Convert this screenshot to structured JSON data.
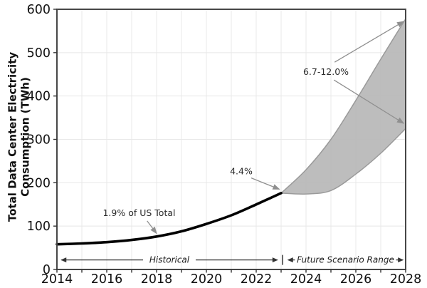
{
  "chart_data": {
    "type": "area",
    "title": "",
    "xlabel": "",
    "ylabel": "Total Data Center Electricity\nConsumption (TWh)",
    "xlim": [
      2014,
      2028
    ],
    "ylim": [
      0,
      600
    ],
    "x_tick_labels": [
      2014,
      2016,
      2018,
      2020,
      2022,
      2024,
      2026,
      2028
    ],
    "x_minor_ticks": [
      2014,
      2015,
      2016,
      2017,
      2018,
      2019,
      2020,
      2021,
      2022,
      2023,
      2024,
      2025,
      2026,
      2027,
      2028
    ],
    "y_ticks": [
      0,
      100,
      200,
      300,
      400,
      500,
      600
    ],
    "grid": true,
    "legend": "none",
    "series": [
      {
        "name": "Historical",
        "type": "line",
        "x": [
          2014,
          2015,
          2016,
          2017,
          2018,
          2019,
          2020,
          2021,
          2022,
          2023
        ],
        "values": [
          58,
          60,
          63,
          68,
          76,
          88,
          105,
          125,
          150,
          176
        ]
      },
      {
        "name": "Future Scenario Range (low)",
        "type": "band-lower-edge",
        "x": [
          2023,
          2024,
          2025,
          2026,
          2027,
          2028
        ],
        "values": [
          176,
          174,
          182,
          220,
          268,
          325
        ]
      },
      {
        "name": "Future Scenario Range (high)",
        "type": "band-upper-edge",
        "x": [
          2023,
          2024,
          2025,
          2026,
          2027,
          2028
        ],
        "values": [
          176,
          230,
          300,
          390,
          485,
          578
        ]
      }
    ],
    "annotations": [
      {
        "text": "1.9% of US Total",
        "label_x": 2017.3,
        "label_y": 130,
        "arrows": [
          {
            "x1": 2017.62,
            "y1": 112,
            "x2": 2018.0,
            "y2": 83
          }
        ]
      },
      {
        "text": "4.4%",
        "label_x": 2021.4,
        "label_y": 226,
        "arrows": [
          {
            "x1": 2021.8,
            "y1": 211,
            "x2": 2022.93,
            "y2": 185
          }
        ]
      },
      {
        "text": "6.7-12.0%",
        "label_x": 2024.8,
        "label_y": 455,
        "arrows": [
          {
            "x1": 2025.15,
            "y1": 478,
            "x2": 2027.92,
            "y2": 572
          },
          {
            "x1": 2025.12,
            "y1": 437,
            "x2": 2027.92,
            "y2": 337
          }
        ]
      }
    ],
    "range_markers": [
      {
        "label": "Historical",
        "x_start": 2014.15,
        "x_end": 2022.88,
        "y": 22
      },
      {
        "label": "Future Scenario Range",
        "x_start": 2023.25,
        "x_end": 2027.92,
        "y": 22
      }
    ],
    "range_boundary_x": 2023.06
  },
  "colors": {
    "historical_line": "#000000",
    "band_fill": "#b7b7b7",
    "band_edge": "#9a9a9a",
    "annotation_arrow": "#8f8f8f",
    "annotation_text": "#2b2b2b",
    "range_arrow": "#333333",
    "range_text": "#1a1a1a",
    "grid": "#e8e8e8",
    "spine": "#474747",
    "tick": "#333333",
    "tick_label": "#111111"
  }
}
